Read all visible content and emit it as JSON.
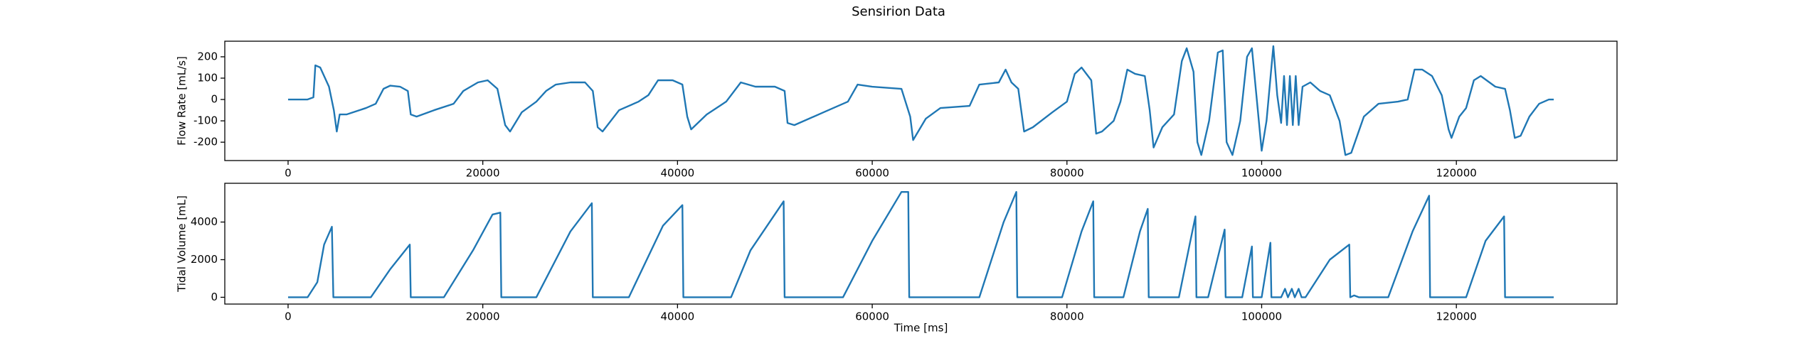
{
  "title": "Sensirion Data",
  "chart_data": [
    {
      "type": "line",
      "ylabel": "Flow Rate [mL/s]",
      "color": "#1f77b4",
      "xlim": [
        -6500,
        136500
      ],
      "ylim": [
        -286,
        273
      ],
      "xticks": [
        0,
        20000,
        40000,
        60000,
        80000,
        100000,
        120000
      ],
      "yticks": [
        -200,
        -100,
        0,
        100,
        200
      ],
      "x": [
        0,
        2000,
        2600,
        2800,
        3300,
        4200,
        4700,
        5000,
        5300,
        6000,
        8000,
        9000,
        9800,
        10500,
        11500,
        12300,
        12600,
        13200,
        15000,
        17000,
        18000,
        19500,
        20500,
        21500,
        22300,
        22800,
        24000,
        25500,
        26500,
        27500,
        29000,
        30500,
        31300,
        31800,
        32300,
        34000,
        36000,
        37000,
        38000,
        39500,
        40500,
        41000,
        41400,
        43000,
        45000,
        46500,
        48000,
        50000,
        51000,
        51300,
        52000,
        55000,
        57500,
        58500,
        60000,
        63000,
        63900,
        64200,
        65500,
        67000,
        70000,
        71000,
        73000,
        73700,
        74300,
        75000,
        75600,
        76500,
        78500,
        80000,
        80800,
        81500,
        82500,
        83000,
        83600,
        84800,
        85500,
        86200,
        87000,
        88000,
        88500,
        88900,
        89800,
        91000,
        91800,
        92300,
        93000,
        93400,
        93800,
        94600,
        95500,
        96000,
        96400,
        97000,
        97800,
        98500,
        99000,
        99500,
        100000,
        100500,
        101200,
        101600,
        102000,
        102300,
        102600,
        102900,
        103200,
        103500,
        103800,
        104200,
        105000,
        106000,
        107000,
        108000,
        108600,
        109200,
        110500,
        112000,
        114000,
        115000,
        115700,
        116500,
        117500,
        118500,
        119200,
        119500,
        120300,
        121000,
        121800,
        122500,
        124000,
        125000,
        125500,
        126000,
        126600,
        127500,
        128500,
        129500,
        130000
      ],
      "values": [
        0,
        0,
        10,
        160,
        150,
        60,
        -50,
        -150,
        -70,
        -70,
        -40,
        -20,
        50,
        65,
        60,
        40,
        -70,
        -80,
        -50,
        -20,
        40,
        80,
        90,
        50,
        -120,
        -150,
        -60,
        -10,
        40,
        70,
        80,
        80,
        40,
        -130,
        -150,
        -50,
        -10,
        20,
        90,
        90,
        70,
        -80,
        -140,
        -70,
        -10,
        80,
        60,
        60,
        40,
        -110,
        -120,
        -60,
        -10,
        70,
        60,
        50,
        -80,
        -190,
        -90,
        -40,
        -30,
        70,
        80,
        140,
        80,
        50,
        -150,
        -130,
        -60,
        -10,
        120,
        150,
        90,
        -160,
        -150,
        -100,
        -10,
        140,
        120,
        110,
        -50,
        -225,
        -130,
        -70,
        180,
        240,
        130,
        -200,
        -260,
        -100,
        220,
        230,
        -200,
        -260,
        -100,
        200,
        240,
        0,
        -240,
        -100,
        250,
        20,
        -110,
        110,
        -120,
        110,
        -120,
        110,
        -120,
        60,
        80,
        40,
        20,
        -100,
        -260,
        -250,
        -80,
        -20,
        -10,
        0,
        140,
        140,
        110,
        20,
        -140,
        -180,
        -80,
        -40,
        90,
        110,
        60,
        50,
        -50,
        -180,
        -170,
        -80,
        -20,
        0,
        0
      ]
    },
    {
      "type": "line",
      "xlabel": "Time [ms]",
      "ylabel": "Tidal Volume [mL]",
      "color": "#1f77b4",
      "xlim": [
        -6500,
        136500
      ],
      "ylim": [
        -360,
        6060
      ],
      "xticks": [
        0,
        20000,
        40000,
        60000,
        80000,
        100000,
        120000
      ],
      "yticks": [
        0,
        2000,
        4000
      ],
      "x": [
        0,
        2000,
        3000,
        3700,
        4500,
        4650,
        8500,
        10500,
        12500,
        12600,
        16000,
        19000,
        21000,
        21800,
        21900,
        25500,
        29000,
        31200,
        31300,
        35000,
        38500,
        40500,
        40600,
        45500,
        47500,
        50900,
        51000,
        57000,
        60000,
        63000,
        63700,
        63800,
        71000,
        73500,
        74800,
        74900,
        79500,
        81500,
        82700,
        82800,
        85800,
        87500,
        88300,
        88400,
        91500,
        92600,
        93200,
        93300,
        94500,
        96200,
        96300,
        98000,
        99000,
        99100,
        100000,
        100900,
        101000,
        102000,
        102400,
        102700,
        103100,
        103400,
        103800,
        104100,
        104500,
        107000,
        109000,
        109100,
        109500,
        110000,
        113000,
        115500,
        117200,
        117300,
        121000,
        123000,
        124900,
        125000,
        130000
      ],
      "values": [
        0,
        0,
        800,
        2800,
        3750,
        0,
        0,
        1500,
        2800,
        0,
        0,
        2500,
        4400,
        4500,
        0,
        0,
        3500,
        5000,
        0,
        0,
        3800,
        4900,
        0,
        0,
        2500,
        5100,
        0,
        0,
        3000,
        5600,
        5600,
        0,
        0,
        4000,
        5600,
        0,
        0,
        3500,
        5100,
        0,
        0,
        3500,
        4700,
        0,
        0,
        2800,
        4300,
        0,
        0,
        3600,
        0,
        0,
        2700,
        0,
        0,
        2900,
        0,
        0,
        450,
        0,
        450,
        0,
        450,
        0,
        0,
        2000,
        2800,
        0,
        100,
        0,
        0,
        3500,
        5400,
        0,
        0,
        3000,
        4300,
        0,
        0
      ]
    }
  ]
}
